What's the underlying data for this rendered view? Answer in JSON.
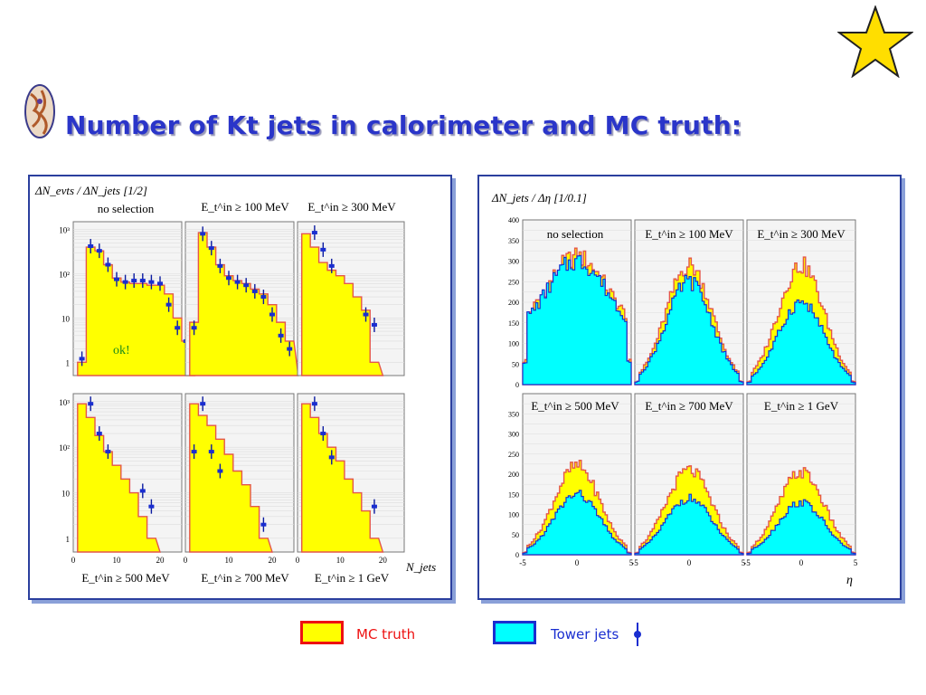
{
  "slide": {
    "title": "Number of Kt jets in calorimeter and MC truth:"
  },
  "legend": {
    "mc_truth": {
      "label": "MC truth",
      "color": "#ffff00",
      "border": "#ee1111",
      "text_color": "#ee1111"
    },
    "tower_jets": {
      "label": "Tower jets",
      "color": "#00ffff",
      "border": "#1a2ed0",
      "text_color": "#1a2ed0"
    }
  },
  "chart_data": [
    {
      "type": "bar",
      "panel": "left",
      "y_axis_label": "ΔN_evts / ΔN_jets [1/2]",
      "x_axis_label": "N_jets",
      "log_y": true,
      "ylim": [
        0.5,
        1500
      ],
      "xlim": [
        0,
        25
      ],
      "x_ticks": [
        "0",
        "10",
        "20"
      ],
      "y_ticks": [
        "1",
        "10",
        "10²",
        "10³"
      ],
      "annotation": "ok!",
      "subplots": [
        {
          "cut": "no selection",
          "hist": [
            1,
            400,
            330,
            160,
            80,
            65,
            60,
            60,
            55,
            55,
            35,
            10,
            3
          ],
          "points": [
            [
              1,
              1.2
            ],
            [
              2,
              420
            ],
            [
              3,
              330
            ],
            [
              4,
              160
            ],
            [
              5,
              75
            ],
            [
              6,
              65
            ],
            [
              7,
              70
            ],
            [
              8,
              70
            ],
            [
              9,
              65
            ],
            [
              10,
              60
            ],
            [
              11,
              20
            ],
            [
              12,
              6
            ],
            [
              13,
              3
            ]
          ]
        },
        {
          "cut": "E_t^in ≥ 100 MeV",
          "hist": [
            8,
            850,
            400,
            160,
            90,
            70,
            60,
            45,
            35,
            20,
            8,
            3
          ],
          "points": [
            [
              1,
              6
            ],
            [
              2,
              800
            ],
            [
              3,
              380
            ],
            [
              4,
              150
            ],
            [
              5,
              80
            ],
            [
              6,
              65
            ],
            [
              7,
              55
            ],
            [
              8,
              40
            ],
            [
              9,
              30
            ],
            [
              10,
              12
            ],
            [
              11,
              4
            ],
            [
              12,
              2
            ]
          ]
        },
        {
          "cut": "E_t^in ≥ 300 MeV",
          "hist": [
            800,
            400,
            180,
            120,
            90,
            60,
            30,
            15,
            1
          ],
          "points": [
            [
              2,
              850
            ],
            [
              3,
              350
            ],
            [
              4,
              150
            ],
            [
              8,
              12
            ],
            [
              9,
              7
            ]
          ]
        },
        {
          "cut": "E_t^in ≥ 500 MeV",
          "hist": [
            900,
            450,
            180,
            80,
            40,
            20,
            10,
            3,
            1
          ],
          "points": [
            [
              2,
              900
            ],
            [
              3,
              200
            ],
            [
              4,
              80
            ],
            [
              8,
              11
            ],
            [
              9,
              5
            ]
          ]
        },
        {
          "cut": "E_t^in ≥ 700 MeV",
          "hist": [
            900,
            500,
            300,
            150,
            70,
            30,
            15,
            5,
            1
          ],
          "points": [
            [
              1,
              80
            ],
            [
              2,
              900
            ],
            [
              3,
              80
            ],
            [
              4,
              30
            ],
            [
              9,
              2
            ]
          ]
        },
        {
          "cut": "E_t^in ≥ 1 GeV",
          "hist": [
            900,
            450,
            200,
            100,
            50,
            20,
            10,
            4,
            1
          ],
          "points": [
            [
              2,
              900
            ],
            [
              3,
              200
            ],
            [
              4,
              60
            ],
            [
              9,
              5
            ]
          ]
        }
      ]
    },
    {
      "type": "area",
      "panel": "right",
      "y_axis_label": "ΔN_jets / Δη [1/0.1]",
      "x_axis_label": "η",
      "ylim": [
        0,
        400
      ],
      "xlim": [
        -5,
        5
      ],
      "x_ticks": [
        "-5",
        "0",
        "5"
      ],
      "y_ticks": [
        "0",
        "50",
        "100",
        "150",
        "200",
        "250",
        "300",
        "350",
        "400"
      ],
      "subplots": [
        {
          "cut": "no selection",
          "mc_peak": 310,
          "tower_peak": 300
        },
        {
          "cut": "E_t^in ≥ 100 MeV",
          "mc_peak": 290,
          "tower_peak": 250
        },
        {
          "cut": "E_t^in ≥ 300 MeV",
          "mc_peak": 290,
          "tower_peak": 200
        },
        {
          "cut": "E_t^in ≥ 500 MeV",
          "mc_peak": 220,
          "tower_peak": 150
        },
        {
          "cut": "E_t^in ≥ 700 MeV",
          "mc_peak": 210,
          "tower_peak": 140
        },
        {
          "cut": "E_t^in ≥ 1 GeV",
          "mc_peak": 205,
          "tower_peak": 130
        }
      ]
    }
  ]
}
